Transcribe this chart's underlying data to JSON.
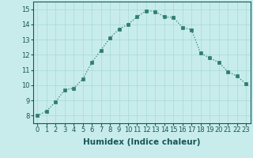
{
  "x": [
    0,
    1,
    2,
    3,
    4,
    5,
    6,
    7,
    8,
    9,
    10,
    11,
    12,
    13,
    14,
    15,
    16,
    17,
    18,
    19,
    20,
    21,
    22,
    23
  ],
  "y": [
    8.0,
    8.3,
    8.9,
    9.7,
    9.8,
    10.4,
    11.5,
    12.3,
    13.1,
    13.7,
    14.0,
    14.5,
    14.9,
    14.85,
    14.5,
    14.45,
    13.8,
    13.65,
    12.1,
    11.8,
    11.5,
    10.9,
    10.6,
    10.1
  ],
  "line_color": "#2e7d6e",
  "marker_color": "#2e7d6e",
  "bg_color": "#c8ecec",
  "grid_color": "#a8d8d8",
  "xlabel": "Humidex (Indice chaleur)",
  "xlim": [
    -0.5,
    23.5
  ],
  "ylim": [
    7.5,
    15.5
  ],
  "yticks": [
    8,
    9,
    10,
    11,
    12,
    13,
    14,
    15
  ],
  "xticks": [
    0,
    1,
    2,
    3,
    4,
    5,
    6,
    7,
    8,
    9,
    10,
    11,
    12,
    13,
    14,
    15,
    16,
    17,
    18,
    19,
    20,
    21,
    22,
    23
  ],
  "tick_fontsize": 6.0,
  "label_fontsize": 7.5,
  "tick_color": "#1a5555",
  "label_color": "#1a5555"
}
